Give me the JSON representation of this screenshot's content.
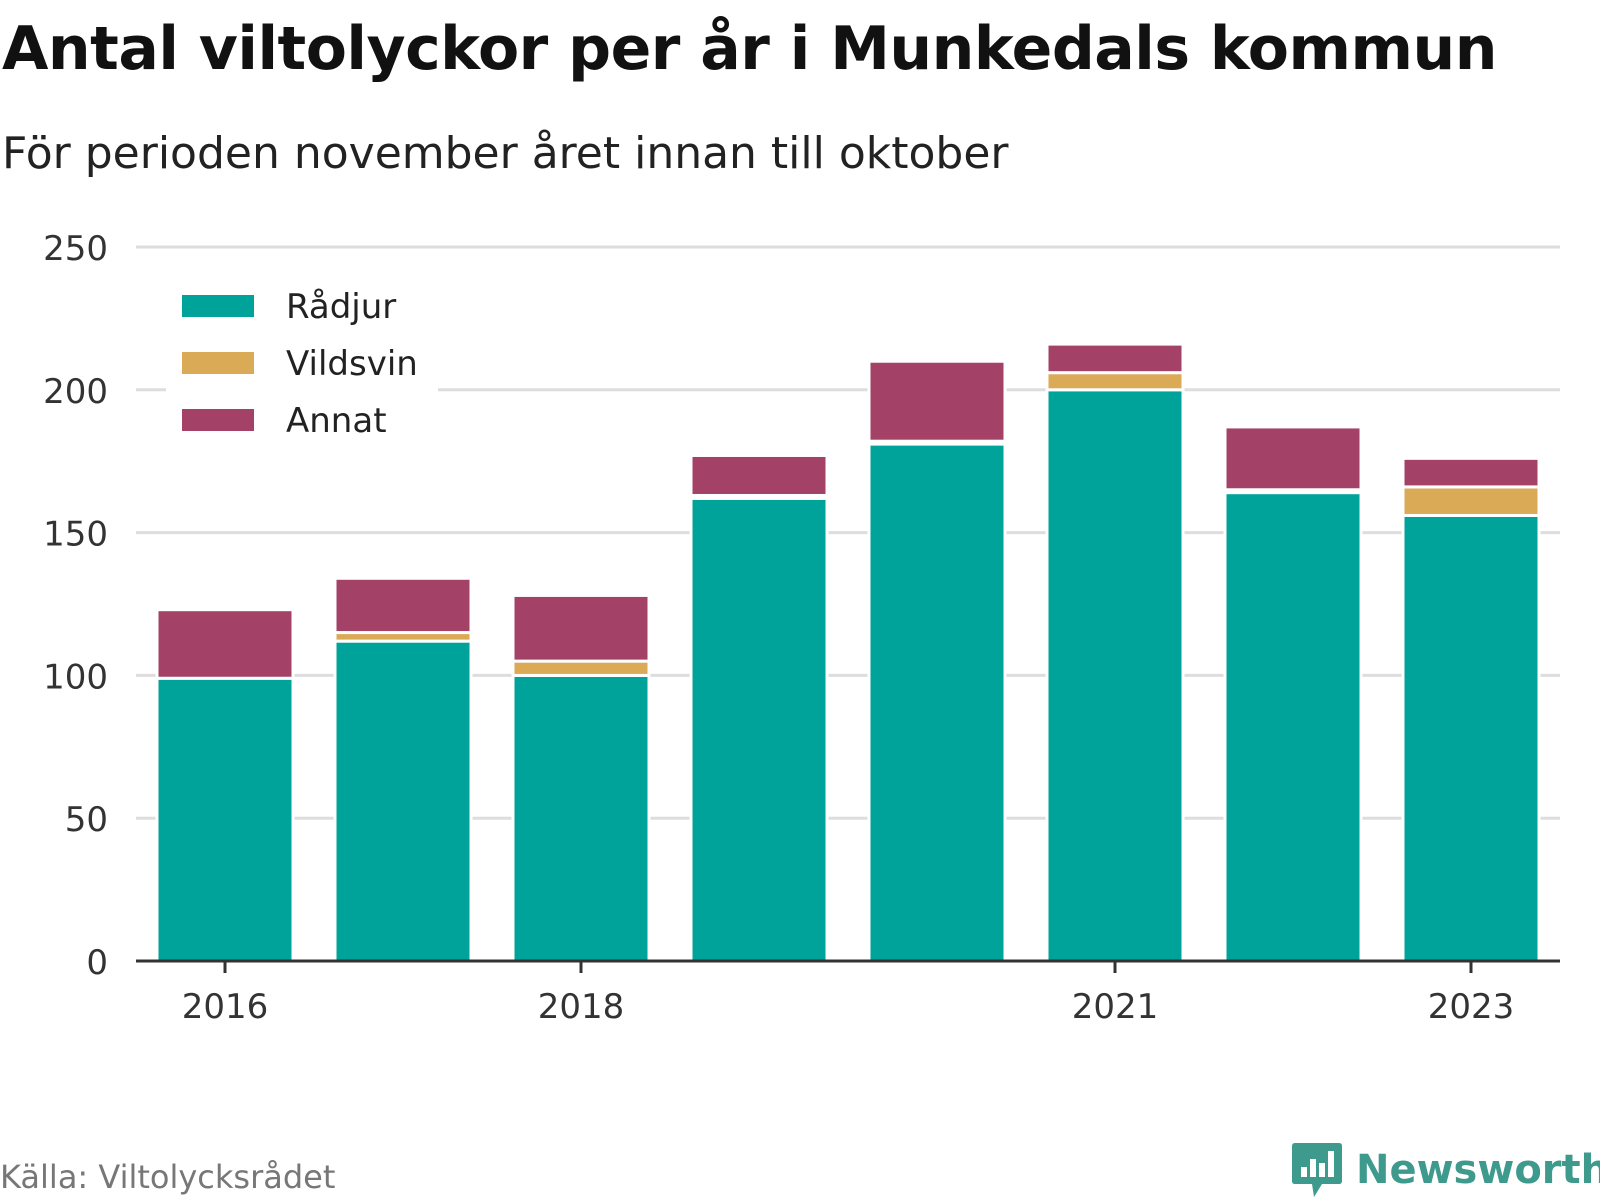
{
  "title": "Antal viltolyckor per år i Munkedals kommun",
  "subtitle": "För perioden november året innan till oktober",
  "source": "Källa: Viltolycksrådet",
  "brand": "Newsworthy",
  "colors": {
    "radjur": "#00a39a",
    "vildsvin": "#dbaa56",
    "annat": "#a34166",
    "grid": "#dddddd",
    "axis": "#333333",
    "brand": "#3d9a8c"
  },
  "chart_data": {
    "type": "bar",
    "stacked": true,
    "categories": [
      "2016",
      "2017",
      "2018",
      "2019",
      "2020",
      "2021",
      "2022",
      "2023"
    ],
    "x_tick_labels": [
      "2016",
      "2018",
      "2021",
      "2023"
    ],
    "series": [
      {
        "name": "Rådjur",
        "color": "#00a39a",
        "values": [
          99,
          112,
          100,
          162,
          181,
          200,
          164,
          156
        ]
      },
      {
        "name": "Vildsvin",
        "color": "#dbaa56",
        "values": [
          0,
          3,
          5,
          1,
          1,
          6,
          1,
          10
        ]
      },
      {
        "name": "Annat",
        "color": "#a34166",
        "values": [
          24,
          19,
          23,
          14,
          28,
          10,
          22,
          10
        ]
      }
    ],
    "ylim": [
      0,
      250
    ],
    "y_ticks": [
      0,
      50,
      100,
      150,
      200,
      250
    ],
    "grid": true,
    "legend_position": "top-left"
  }
}
